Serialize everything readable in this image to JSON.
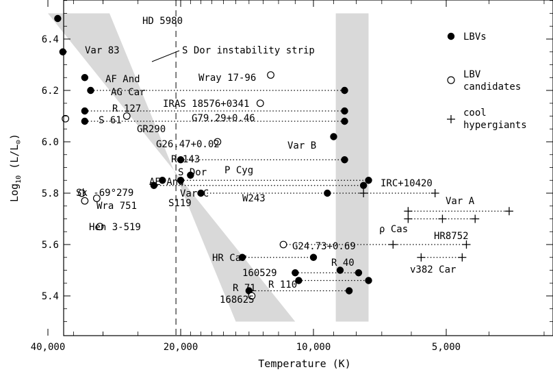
{
  "chart_data": {
    "type": "scatter",
    "xlabel": "Temperature (K)",
    "ylabel_prefix": "Log",
    "ylabel_sub": "10",
    "ylabel_rest": " (L/L",
    "ylabel_sun": "⊙",
    "ylabel_end": ")",
    "x_ticks": [
      "40,000",
      "20,000",
      "10,000",
      "5,000"
    ],
    "x_tick_values": [
      40000,
      20000,
      10000,
      5000
    ],
    "y_ticks": [
      "5.4",
      "5.6",
      "5.8",
      "6.0",
      "6.2",
      "6.4"
    ],
    "y_tick_values": [
      5.4,
      5.6,
      5.8,
      6.0,
      6.2,
      6.4
    ],
    "ylim": [
      5.3,
      6.55
    ],
    "x_scale": "log",
    "x_range": [
      60000,
      3000
    ],
    "strip_annotation": "S Dor instability strip",
    "instability_strip": {
      "top": [
        [
          40000,
          6.5
        ],
        [
          29000,
          6.5
        ]
      ],
      "bottom": [
        [
          11000,
          5.3
        ],
        [
          15000,
          5.3
        ]
      ]
    },
    "constant_temperature_band": {
      "t_hot": 8900,
      "t_cool": 7500,
      "ylim": [
        5.3,
        6.5
      ]
    },
    "dashed_line_temperature": 20500,
    "legend": [
      {
        "marker": "filled",
        "label_lines": [
          "LBVs"
        ]
      },
      {
        "marker": "open",
        "label_lines": [
          "LBV",
          "candidates"
        ]
      },
      {
        "marker": "plus",
        "label_lines": [
          "cool",
          "hypergiants"
        ]
      }
    ],
    "series": [
      {
        "name": "LBVs",
        "marker": "filled",
        "points": [
          {
            "label": "HD 5980",
            "T": 38000,
            "L": 6.48
          },
          {
            "label": "Var 83",
            "T": 37000,
            "L": 6.35
          },
          {
            "label": "AF And",
            "T": 33000,
            "L": 6.25
          },
          {
            "label": "AG Car",
            "T": 32000,
            "L": 6.2
          },
          {
            "label": "",
            "T": 8500,
            "L": 6.2
          },
          {
            "label": "R 127",
            "T": 33000,
            "L": 6.12
          },
          {
            "label": "",
            "T": 8500,
            "L": 6.12
          },
          {
            "label": "GR290",
            "T": 33000,
            "L": 6.08
          },
          {
            "label": "",
            "T": 8500,
            "L": 6.08
          },
          {
            "label": "Var B",
            "T": 9000,
            "L": 6.02
          },
          {
            "label": "R 143",
            "T": 20000,
            "L": 5.93
          },
          {
            "label": "",
            "T": 8500,
            "L": 5.93
          },
          {
            "label": "P Cyg",
            "T": 19000,
            "L": 5.87
          },
          {
            "label": "S Dor",
            "T": 20000,
            "L": 5.85
          },
          {
            "label": "",
            "T": 7500,
            "L": 5.85
          },
          {
            "label": "AE And",
            "T": 22000,
            "L": 5.85
          },
          {
            "label": "Var C",
            "T": 23000,
            "L": 5.83
          },
          {
            "label": "",
            "T": 7700,
            "L": 5.83
          },
          {
            "label": "W243",
            "T": 18000,
            "L": 5.8
          },
          {
            "label": "",
            "T": 9300,
            "L": 5.8
          },
          {
            "label": "HR Car",
            "T": 14500,
            "L": 5.55
          },
          {
            "label": "",
            "T": 10000,
            "L": 5.55
          },
          {
            "label": "R 40",
            "T": 8700,
            "L": 5.5
          },
          {
            "label": "160529",
            "T": 11000,
            "L": 5.49
          },
          {
            "label": "",
            "T": 7900,
            "L": 5.49
          },
          {
            "label": "R 110",
            "T": 10800,
            "L": 5.46
          },
          {
            "label": "",
            "T": 7500,
            "L": 5.46
          },
          {
            "label": "R 71",
            "T": 14000,
            "L": 5.42
          },
          {
            "label": "",
            "T": 8300,
            "L": 5.42
          }
        ]
      },
      {
        "name": "LBV candidates",
        "marker": "open",
        "points": [
          {
            "label": "Wray 17-96",
            "T": 12500,
            "L": 6.26
          },
          {
            "label": "IRAS 18576+0341",
            "T": 13200,
            "L": 6.15
          },
          {
            "label": "S 61",
            "T": 36500,
            "L": 6.09
          },
          {
            "label": "G79.29+0.46",
            "T": 26500,
            "L": 6.1
          },
          {
            "label": "G26.47+0.02",
            "T": 16500,
            "L": 6.0
          },
          {
            "label": "Sk -69°279",
            "T": 33500,
            "L": 5.8
          },
          {
            "label": "Wra 751",
            "T": 33000,
            "L": 5.77
          },
          {
            "label": "S119",
            "T": 31000,
            "L": 5.78
          },
          {
            "label": "Hen 3-519",
            "T": 30500,
            "L": 5.67
          },
          {
            "label": "G24.73+0.69",
            "T": 11700,
            "L": 5.6
          },
          {
            "label": "168625",
            "T": 13800,
            "L": 5.4
          }
        ]
      },
      {
        "name": "cool hypergiants",
        "marker": "plus",
        "points": [
          {
            "label": "",
            "T": 7700,
            "L": 5.8
          },
          {
            "label": "IRC+10420",
            "T": 5300,
            "L": 5.8
          },
          {
            "label": "",
            "T": 6100,
            "L": 5.73
          },
          {
            "label": "Var A",
            "T": 3600,
            "L": 5.73
          },
          {
            "label": "",
            "T": 6100,
            "L": 5.7
          },
          {
            "label": "ρ Cas",
            "T": 5100,
            "L": 5.7
          },
          {
            "label": "",
            "T": 4300,
            "L": 5.7
          },
          {
            "label": "",
            "T": 6600,
            "L": 5.6
          },
          {
            "label": "HR8752",
            "T": 4500,
            "L": 5.6
          },
          {
            "label": "",
            "T": 5700,
            "L": 5.55
          },
          {
            "label": "v382 Car",
            "T": 4600,
            "L": 5.55
          }
        ]
      }
    ],
    "dotted_links": [
      {
        "from": [
          32000,
          6.2
        ],
        "to": [
          8500,
          6.2
        ]
      },
      {
        "from": [
          33000,
          6.12
        ],
        "to": [
          8500,
          6.12
        ]
      },
      {
        "from": [
          33000,
          6.08
        ],
        "to": [
          8500,
          6.08
        ]
      },
      {
        "from": [
          20000,
          5.93
        ],
        "to": [
          8500,
          5.93
        ]
      },
      {
        "from": [
          20000,
          5.85
        ],
        "to": [
          7500,
          5.85
        ]
      },
      {
        "from": [
          23000,
          5.83
        ],
        "to": [
          7700,
          5.83
        ]
      },
      {
        "from": [
          18000,
          5.8
        ],
        "to": [
          5300,
          5.8
        ]
      },
      {
        "from": [
          6100,
          5.73
        ],
        "to": [
          3600,
          5.73
        ]
      },
      {
        "from": [
          6100,
          5.7
        ],
        "to": [
          4300,
          5.7
        ]
      },
      {
        "from": [
          11700,
          5.6
        ],
        "to": [
          4500,
          5.6
        ]
      },
      {
        "from": [
          5700,
          5.55
        ],
        "to": [
          4600,
          5.55
        ]
      },
      {
        "from": [
          14500,
          5.55
        ],
        "to": [
          10000,
          5.55
        ]
      },
      {
        "from": [
          11000,
          5.49
        ],
        "to": [
          7900,
          5.49
        ]
      },
      {
        "from": [
          10800,
          5.46
        ],
        "to": [
          7500,
          5.46
        ]
      },
      {
        "from": [
          14000,
          5.42
        ],
        "to": [
          8300,
          5.42
        ]
      }
    ]
  }
}
